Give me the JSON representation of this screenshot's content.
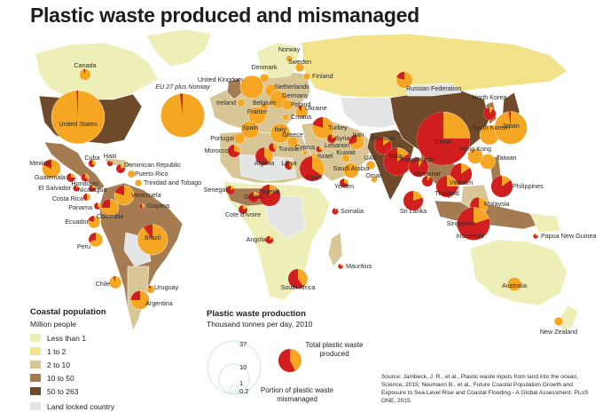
{
  "title": "Plastic waste produced and mismanaged",
  "colors": {
    "ocean": "#ffffff",
    "landlocked": "#e3e4e6",
    "less_than_1": "#eeeeb8",
    "one_to_2": "#f2e38a",
    "two_to_10": "#d8c697",
    "ten_to_50": "#a57c52",
    "fifty_to_263": "#6e4a2b",
    "total_bubble": "#f5a623",
    "mismanaged": "#d11f1f"
  },
  "coastal_legend": {
    "title": "Coastal population",
    "subtitle": "Million people",
    "items": [
      {
        "label": "Less than 1",
        "color": "#eeeeb8"
      },
      {
        "label": "1 to 2",
        "color": "#f2e38a"
      },
      {
        "label": "2 to 10",
        "color": "#d8c697"
      },
      {
        "label": "10 to 50",
        "color": "#a57c52"
      },
      {
        "label": "50 to 263",
        "color": "#6e4a2b"
      },
      {
        "label": "Land locked country",
        "color": "#e3e4e6"
      }
    ]
  },
  "production_legend": {
    "title": "Plastic waste production",
    "subtitle": "Thousand tonnes per day, 2010",
    "scale_values": [
      "37",
      "10",
      "1",
      "0,2"
    ],
    "total_label": "Total plastic waste produced",
    "mismanaged_label": "Portion of plastic waste mismanaged"
  },
  "source": "Source: Jambeck, J. R., et al., Plastic waste inputs from land into the ocean, Science, 2015; Neumann B., et al., Future Coastal Population Growth and Exposure to Sea-Level Rise and Coastal Flooding - A Global Assessment. PLoS ONE, 2015.",
  "countries": [
    {
      "name": "Canada",
      "total": 1.7,
      "mismanaged": 0.05
    },
    {
      "name": "United States",
      "total": 37,
      "mismanaged": 0.01
    },
    {
      "name": "Mexico",
      "total": 4.5,
      "mismanaged": 0.18
    },
    {
      "name": "Cuba",
      "total": 0.7,
      "mismanaged": 0.6
    },
    {
      "name": "Haiti",
      "total": 0.4,
      "mismanaged": 0.9
    },
    {
      "name": "Dominican Republic",
      "total": 1.0,
      "mismanaged": 0.8
    },
    {
      "name": "Puerto Rico",
      "total": 0.7,
      "mismanaged": 0.0
    },
    {
      "name": "Trinidad and Tobago",
      "total": 0.6,
      "mismanaged": 0.0
    },
    {
      "name": "Guatemala",
      "total": 1.0,
      "mismanaged": 0.75
    },
    {
      "name": "Honduras",
      "total": 0.8,
      "mismanaged": 0.65
    },
    {
      "name": "El Salvador",
      "total": 0.5,
      "mismanaged": 0.8
    },
    {
      "name": "Nicaragua",
      "total": 0.6,
      "mismanaged": 0.8
    },
    {
      "name": "Costa Rica",
      "total": 0.7,
      "mismanaged": 0.5
    },
    {
      "name": "Panama",
      "total": 0.6,
      "mismanaged": 0.6
    },
    {
      "name": "Venezuela",
      "total": 5.0,
      "mismanaged": 0.2
    },
    {
      "name": "Guyana",
      "total": 0.3,
      "mismanaged": 0.6
    },
    {
      "name": "Colombia",
      "total": 4.0,
      "mismanaged": 0.25
    },
    {
      "name": "Ecuador",
      "total": 2.0,
      "mismanaged": 0.2
    },
    {
      "name": "Peru",
      "total": 2.6,
      "mismanaged": 0.3
    },
    {
      "name": "Brazil",
      "total": 12.0,
      "mismanaged": 0.1
    },
    {
      "name": "Chile",
      "total": 2.0,
      "mismanaged": 0.05
    },
    {
      "name": "Uruguay",
      "total": 0.8,
      "mismanaged": 0.1
    },
    {
      "name": "Argentina",
      "total": 4.5,
      "mismanaged": 0.25
    },
    {
      "name": "EU 27 plus Norway",
      "total": 25,
      "mismanaged": 0.02
    },
    {
      "name": "Norway",
      "total": 0.5,
      "mismanaged": 0.0
    },
    {
      "name": "Sweden",
      "total": 1.0,
      "mismanaged": 0.0
    },
    {
      "name": "Finland",
      "total": 0.6,
      "mismanaged": 0.0
    },
    {
      "name": "Russian Federation",
      "total": 3.5,
      "mismanaged": 0.2
    },
    {
      "name": "Denmark",
      "total": 1.0,
      "mismanaged": 0.0
    },
    {
      "name": "United Kingdom",
      "total": 7.0,
      "mismanaged": 0.0
    },
    {
      "name": "Netherlands",
      "total": 2.2,
      "mismanaged": 0.0
    },
    {
      "name": "Germany",
      "total": 4.0,
      "mismanaged": 0.0
    },
    {
      "name": "Poland",
      "total": 1.5,
      "mismanaged": 0.0
    },
    {
      "name": "Ireland",
      "total": 0.8,
      "mismanaged": 0.0
    },
    {
      "name": "Belgium",
      "total": 1.0,
      "mismanaged": 0.0
    },
    {
      "name": "France",
      "total": 4.0,
      "mismanaged": 0.0
    },
    {
      "name": "Ukraine",
      "total": 2.0,
      "mismanaged": 0.1
    },
    {
      "name": "Croatia",
      "total": 0.5,
      "mismanaged": 0.0
    },
    {
      "name": "Spain",
      "total": 4.0,
      "mismanaged": 0.0
    },
    {
      "name": "Portugal",
      "total": 1.5,
      "mismanaged": 0.0
    },
    {
      "name": "Italy",
      "total": 5.0,
      "mismanaged": 0.0
    },
    {
      "name": "Greece",
      "total": 1.5,
      "mismanaged": 0.0
    },
    {
      "name": "Turkey",
      "total": 6.0,
      "mismanaged": 0.2
    },
    {
      "name": "Cyprus",
      "total": 0.3,
      "mismanaged": 0.0
    },
    {
      "name": "Syria",
      "total": 1.0,
      "mismanaged": 0.8
    },
    {
      "name": "Lebanon",
      "total": 0.5,
      "mismanaged": 0.7
    },
    {
      "name": "Israel",
      "total": 1.0,
      "mismanaged": 0.0
    },
    {
      "name": "Morocco",
      "total": 2.0,
      "mismanaged": 0.7
    },
    {
      "name": "Algeria",
      "total": 4.0,
      "mismanaged": 0.6
    },
    {
      "name": "Tunisia",
      "total": 1.0,
      "mismanaged": 0.6
    },
    {
      "name": "Libya",
      "total": 1.0,
      "mismanaged": 0.6
    },
    {
      "name": "Egypt",
      "total": 8.0,
      "mismanaged": 0.65
    },
    {
      "name": "Iran",
      "total": 3.0,
      "mismanaged": 0.3
    },
    {
      "name": "Kuwait",
      "total": 0.8,
      "mismanaged": 0.0
    },
    {
      "name": "UAE",
      "total": 1.0,
      "mismanaged": 0.0
    },
    {
      "name": "Saudi Arabia",
      "total": 3.0,
      "mismanaged": 0.0
    },
    {
      "name": "Oman",
      "total": 0.5,
      "mismanaged": 0.0
    },
    {
      "name": "Yemen",
      "total": 1.0,
      "mismanaged": 0.7
    },
    {
      "name": "Pakistan",
      "total": 4.0,
      "mismanaged": 0.85
    },
    {
      "name": "India",
      "total": 10.0,
      "mismanaged": 0.85
    },
    {
      "name": "Bangladesh",
      "total": 5.0,
      "mismanaged": 0.9
    },
    {
      "name": "Myanmar",
      "total": 1.5,
      "mismanaged": 0.9
    },
    {
      "name": "Sri Lanka",
      "total": 5.0,
      "mismanaged": 0.8
    },
    {
      "name": "China",
      "total": 37,
      "mismanaged": 0.75
    },
    {
      "name": "North Korea",
      "total": 2.0,
      "mismanaged": 0.9
    },
    {
      "name": "South Korea",
      "total": 5.0,
      "mismanaged": 0.0
    },
    {
      "name": "Japan",
      "total": 14.0,
      "mismanaged": 0.02
    },
    {
      "name": "Taiwan",
      "total": 3.0,
      "mismanaged": 0.0
    },
    {
      "name": "Hong Kong",
      "total": 3.0,
      "mismanaged": 0.0
    },
    {
      "name": "Vietnam",
      "total": 6.0,
      "mismanaged": 0.85
    },
    {
      "name": "Thailand",
      "total": 6.0,
      "mismanaged": 0.75
    },
    {
      "name": "Philippines",
      "total": 6.0,
      "mismanaged": 0.85
    },
    {
      "name": "Malaysia",
      "total": 4.0,
      "mismanaged": 0.55
    },
    {
      "name": "Singapore",
      "total": 1.0,
      "mismanaged": 0.0
    },
    {
      "name": "Indonesia",
      "total": 14.0,
      "mismanaged": 0.8
    },
    {
      "name": "Papua New Guinea",
      "total": 0.3,
      "mismanaged": 0.8
    },
    {
      "name": "Australia",
      "total": 2.5,
      "mismanaged": 0.0
    },
    {
      "name": "New Zealand",
      "total": 1.0,
      "mismanaged": 0.0
    },
    {
      "name": "Senegal",
      "total": 1.0,
      "mismanaged": 0.8
    },
    {
      "name": "Cote d'Ivoire",
      "total": 1.0,
      "mismanaged": 0.8
    },
    {
      "name": "Ghana",
      "total": 1.5,
      "mismanaged": 0.8
    },
    {
      "name": "Nigeria",
      "total": 6.0,
      "mismanaged": 0.85
    },
    {
      "name": "Angola",
      "total": 0.8,
      "mismanaged": 0.8
    },
    {
      "name": "Somalia",
      "total": 0.5,
      "mismanaged": 0.9
    },
    {
      "name": "Mauritius",
      "total": 0.3,
      "mismanaged": 0.8
    },
    {
      "name": "South Africa",
      "total": 5.0,
      "mismanaged": 0.6
    }
  ]
}
